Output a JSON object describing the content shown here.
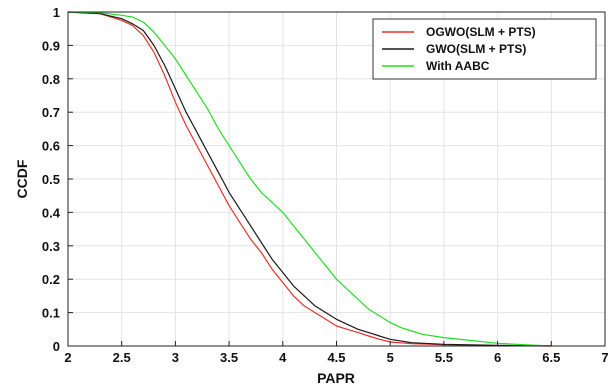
{
  "chart_data": {
    "type": "line",
    "title": "",
    "xlabel": "PAPR",
    "ylabel": "CCDF",
    "xlim": [
      2,
      7
    ],
    "ylim": [
      0,
      1
    ],
    "x_ticks": [
      2,
      2.5,
      3,
      3.5,
      4,
      4.5,
      5,
      5.5,
      6,
      6.5,
      7
    ],
    "x_tick_labels": [
      "2",
      "2.5",
      "3",
      "3.5",
      "4",
      "4.5",
      "5",
      "5.5",
      "6",
      "6.5",
      "7"
    ],
    "y_ticks": [
      0,
      0.1,
      0.2,
      0.3,
      0.4,
      0.5,
      0.6,
      0.7,
      0.8,
      0.9,
      1
    ],
    "y_tick_labels": [
      "0",
      "0.1",
      "0.2",
      "0.3",
      "0.4",
      "0.5",
      "0.6",
      "0.7",
      "0.8",
      "0.9",
      "1"
    ],
    "grid": true,
    "legend_position": "top-right",
    "series": [
      {
        "name": "OGWO(SLM + PTS)",
        "color": "#e8322a",
        "points": [
          [
            2.0,
            1.0
          ],
          [
            2.3,
            0.995
          ],
          [
            2.5,
            0.975
          ],
          [
            2.6,
            0.96
          ],
          [
            2.7,
            0.93
          ],
          [
            2.8,
            0.88
          ],
          [
            2.9,
            0.81
          ],
          [
            3.0,
            0.73
          ],
          [
            3.1,
            0.66
          ],
          [
            3.2,
            0.6
          ],
          [
            3.3,
            0.54
          ],
          [
            3.4,
            0.48
          ],
          [
            3.5,
            0.42
          ],
          [
            3.6,
            0.37
          ],
          [
            3.7,
            0.32
          ],
          [
            3.8,
            0.28
          ],
          [
            3.9,
            0.23
          ],
          [
            4.0,
            0.19
          ],
          [
            4.1,
            0.15
          ],
          [
            4.2,
            0.12
          ],
          [
            4.3,
            0.1
          ],
          [
            4.4,
            0.08
          ],
          [
            4.5,
            0.06
          ],
          [
            4.6,
            0.05
          ],
          [
            4.7,
            0.04
          ],
          [
            4.8,
            0.03
          ],
          [
            4.9,
            0.02
          ],
          [
            5.0,
            0.012
          ],
          [
            5.2,
            0.007
          ],
          [
            5.5,
            0.004
          ],
          [
            6.0,
            0.001
          ],
          [
            6.5,
            0.0
          ]
        ]
      },
      {
        "name": "GWO(SLM + PTS)",
        "color": "#1a1a1a",
        "points": [
          [
            2.0,
            1.0
          ],
          [
            2.3,
            0.995
          ],
          [
            2.5,
            0.98
          ],
          [
            2.6,
            0.965
          ],
          [
            2.7,
            0.945
          ],
          [
            2.8,
            0.9
          ],
          [
            2.9,
            0.84
          ],
          [
            3.0,
            0.77
          ],
          [
            3.1,
            0.7
          ],
          [
            3.2,
            0.64
          ],
          [
            3.3,
            0.58
          ],
          [
            3.4,
            0.52
          ],
          [
            3.5,
            0.46
          ],
          [
            3.6,
            0.41
          ],
          [
            3.7,
            0.36
          ],
          [
            3.8,
            0.31
          ],
          [
            3.9,
            0.26
          ],
          [
            4.0,
            0.22
          ],
          [
            4.1,
            0.18
          ],
          [
            4.2,
            0.15
          ],
          [
            4.3,
            0.12
          ],
          [
            4.4,
            0.1
          ],
          [
            4.5,
            0.08
          ],
          [
            4.6,
            0.065
          ],
          [
            4.7,
            0.05
          ],
          [
            4.8,
            0.04
          ],
          [
            4.9,
            0.03
          ],
          [
            5.0,
            0.02
          ],
          [
            5.2,
            0.01
          ],
          [
            5.5,
            0.005
          ],
          [
            6.0,
            0.002
          ],
          [
            6.5,
            0.0
          ]
        ]
      },
      {
        "name": "With AABC",
        "color": "#22dd22",
        "points": [
          [
            2.0,
            1.0
          ],
          [
            2.3,
            0.998
          ],
          [
            2.5,
            0.99
          ],
          [
            2.6,
            0.985
          ],
          [
            2.7,
            0.97
          ],
          [
            2.8,
            0.94
          ],
          [
            2.9,
            0.9
          ],
          [
            3.0,
            0.86
          ],
          [
            3.1,
            0.81
          ],
          [
            3.2,
            0.76
          ],
          [
            3.3,
            0.71
          ],
          [
            3.4,
            0.65
          ],
          [
            3.5,
            0.6
          ],
          [
            3.6,
            0.55
          ],
          [
            3.7,
            0.5
          ],
          [
            3.8,
            0.46
          ],
          [
            3.9,
            0.43
          ],
          [
            4.0,
            0.4
          ],
          [
            4.1,
            0.36
          ],
          [
            4.2,
            0.32
          ],
          [
            4.3,
            0.28
          ],
          [
            4.4,
            0.24
          ],
          [
            4.5,
            0.2
          ],
          [
            4.6,
            0.17
          ],
          [
            4.7,
            0.14
          ],
          [
            4.8,
            0.11
          ],
          [
            4.9,
            0.09
          ],
          [
            5.0,
            0.07
          ],
          [
            5.1,
            0.055
          ],
          [
            5.2,
            0.045
          ],
          [
            5.3,
            0.035
          ],
          [
            5.5,
            0.025
          ],
          [
            5.8,
            0.015
          ],
          [
            6.0,
            0.008
          ],
          [
            6.3,
            0.003
          ],
          [
            6.5,
            0.0
          ]
        ]
      }
    ]
  }
}
